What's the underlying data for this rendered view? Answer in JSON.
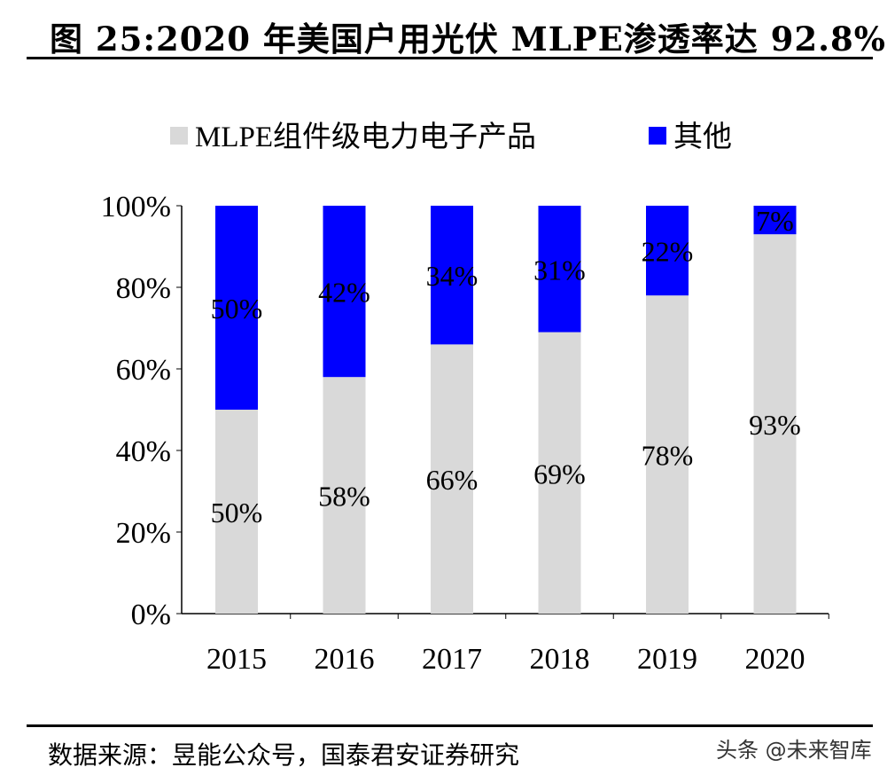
{
  "title": "图 25:2020 年美国户用光伏 MLPE渗透率达 92.8%",
  "footer": "数据来源：昱能公众号，国泰君安证券研究",
  "watermark": "头条 @未来智库",
  "chart_data": {
    "type": "bar",
    "stacked": true,
    "categories": [
      "2015",
      "2016",
      "2017",
      "2018",
      "2019",
      "2020"
    ],
    "series": [
      {
        "name": "MLPE组件级电力电子产品",
        "color": "#d9d9d9",
        "values": [
          50,
          58,
          66,
          69,
          78,
          93
        ],
        "labels": [
          "50%",
          "58%",
          "66%",
          "69%",
          "78%",
          "93%"
        ]
      },
      {
        "name": "其他",
        "color": "#0000ff",
        "values": [
          50,
          42,
          34,
          31,
          22,
          7
        ],
        "labels": [
          "50%",
          "42%",
          "34%",
          "31%",
          "22%",
          "7%"
        ]
      }
    ],
    "ylim": [
      0,
      100
    ],
    "yticks": [
      0,
      20,
      40,
      60,
      80,
      100
    ],
    "ytick_labels": [
      "0%",
      "20%",
      "40%",
      "60%",
      "80%",
      "100%"
    ],
    "legend_position": "top",
    "grid": false
  }
}
